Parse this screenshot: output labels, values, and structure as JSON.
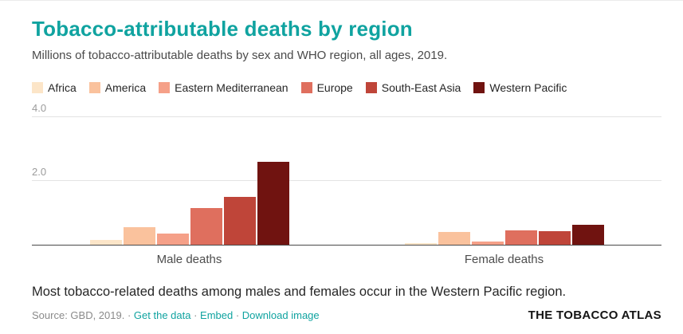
{
  "theme": {
    "accent": "#10a3a0",
    "axis_line": "#4a4a4a",
    "gridline": "#e3e3e3"
  },
  "header": {
    "title": "Tobacco-attributable deaths by region",
    "subtitle": "Millions of tobacco-attributable deaths by sex and WHO region, all ages, 2019."
  },
  "chart_data": {
    "type": "bar",
    "title": "Tobacco-attributable deaths by region",
    "categories": [
      "Male deaths",
      "Female deaths"
    ],
    "series": [
      {
        "name": "Africa",
        "color": "#fce5c8",
        "values": [
          0.15,
          0.04
        ]
      },
      {
        "name": "America",
        "color": "#fac29d",
        "values": [
          0.55,
          0.4
        ]
      },
      {
        "name": "Eastern Mediterranean",
        "color": "#f5a088",
        "values": [
          0.35,
          0.1
        ]
      },
      {
        "name": "Europe",
        "color": "#df6f5e",
        "values": [
          1.15,
          0.45
        ]
      },
      {
        "name": "South-East Asia",
        "color": "#bf4539",
        "values": [
          1.5,
          0.42
        ]
      },
      {
        "name": "Western Pacific",
        "color": "#701310",
        "values": [
          2.6,
          0.62
        ]
      }
    ],
    "xlabel": "",
    "ylabel": "",
    "ylim": [
      0,
      4.0
    ],
    "yticks": [
      2.0,
      4.0
    ],
    "grid": true,
    "legend_position": "top"
  },
  "footer": {
    "note": "Most tobacco-related deaths among males and females occur in the Western Pacific region.",
    "source": "Source: GBD, 2019.",
    "separator": "·",
    "links": [
      {
        "label": "Get the data"
      },
      {
        "label": "Embed"
      },
      {
        "label": "Download image"
      }
    ],
    "brand": "THE TOBACCO ATLAS"
  }
}
